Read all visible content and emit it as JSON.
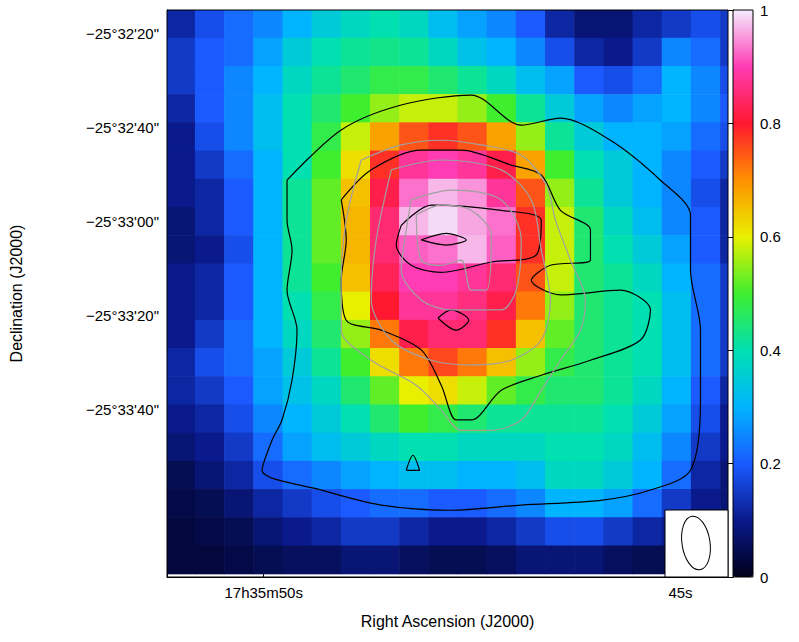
{
  "chart_data": {
    "type": "heatmap",
    "x_label": "Right Ascension (J2000)",
    "y_label": "Declination (J2000)",
    "xlim": [
      51.16,
      44.43
    ],
    "ylim": [
      -2055.7,
      -1935.1
    ],
    "xticks": [
      {
        "value": 50,
        "label": "17h35m50s"
      },
      {
        "value": 45,
        "label": "45s"
      }
    ],
    "yticks": [
      {
        "value": -1940,
        "label": "−25°32'20\""
      },
      {
        "value": -1960,
        "label": "−25°32'40\""
      },
      {
        "value": -1980,
        "label": "−25°33'00\""
      },
      {
        "value": -2000,
        "label": "−25°33'20\""
      },
      {
        "value": -2020,
        "label": "−25°33'40\""
      }
    ],
    "grid": false,
    "x": [
      51.0,
      50.65,
      50.3,
      49.95,
      49.6,
      49.25,
      48.9,
      48.55,
      48.2,
      47.85,
      47.5,
      47.15,
      46.8,
      46.45,
      46.1,
      45.75,
      45.4,
      45.05,
      44.7,
      44.35
    ],
    "y": [
      -1938,
      -1944,
      -1950,
      -1956,
      -1962,
      -1968,
      -1974,
      -1980,
      -1986,
      -1992,
      -1998,
      -2004,
      -2010,
      -2016,
      -2022,
      -2028,
      -2034,
      -2040,
      -2046,
      -2052
    ],
    "cells": [
      [
        0.12,
        0.18,
        0.22,
        0.25,
        0.3,
        0.35,
        0.38,
        0.4,
        0.38,
        0.32,
        0.28,
        0.25,
        0.2,
        0.12,
        0.08,
        0.08,
        0.12,
        0.15,
        0.18,
        0.15
      ],
      [
        0.15,
        0.2,
        0.22,
        0.28,
        0.35,
        0.4,
        0.42,
        0.43,
        0.42,
        0.38,
        0.33,
        0.3,
        0.25,
        0.18,
        0.12,
        0.1,
        0.15,
        0.25,
        0.22,
        0.15
      ],
      [
        0.15,
        0.2,
        0.25,
        0.3,
        0.38,
        0.42,
        0.45,
        0.48,
        0.48,
        0.45,
        0.42,
        0.38,
        0.32,
        0.28,
        0.2,
        0.18,
        0.22,
        0.3,
        0.25,
        0.18
      ],
      [
        0.12,
        0.2,
        0.25,
        0.32,
        0.4,
        0.45,
        0.5,
        0.55,
        0.58,
        0.58,
        0.55,
        0.5,
        0.42,
        0.35,
        0.28,
        0.25,
        0.28,
        0.3,
        0.25,
        0.2
      ],
      [
        0.1,
        0.18,
        0.25,
        0.32,
        0.4,
        0.48,
        0.58,
        0.68,
        0.75,
        0.78,
        0.75,
        0.68,
        0.55,
        0.42,
        0.35,
        0.3,
        0.3,
        0.28,
        0.22,
        0.18
      ],
      [
        0.1,
        0.15,
        0.22,
        0.3,
        0.4,
        0.5,
        0.62,
        0.78,
        0.88,
        0.9,
        0.88,
        0.82,
        0.68,
        0.5,
        0.4,
        0.35,
        0.3,
        0.25,
        0.2,
        0.15
      ],
      [
        0.1,
        0.12,
        0.2,
        0.3,
        0.42,
        0.52,
        0.65,
        0.82,
        0.93,
        0.97,
        0.95,
        0.88,
        0.75,
        0.55,
        0.42,
        0.35,
        0.3,
        0.25,
        0.18,
        0.12
      ],
      [
        0.08,
        0.12,
        0.2,
        0.3,
        0.42,
        0.52,
        0.66,
        0.85,
        0.97,
        0.99,
        0.96,
        0.93,
        0.78,
        0.58,
        0.45,
        0.38,
        0.32,
        0.25,
        0.2,
        0.12
      ],
      [
        0.08,
        0.1,
        0.18,
        0.3,
        0.42,
        0.52,
        0.66,
        0.85,
        0.92,
        0.93,
        0.97,
        0.92,
        0.78,
        0.58,
        0.45,
        0.4,
        0.35,
        0.28,
        0.2,
        0.12
      ],
      [
        0.1,
        0.12,
        0.2,
        0.3,
        0.42,
        0.5,
        0.65,
        0.83,
        0.9,
        0.9,
        0.88,
        0.85,
        0.75,
        0.58,
        0.45,
        0.42,
        0.38,
        0.3,
        0.22,
        0.15
      ],
      [
        0.1,
        0.12,
        0.2,
        0.3,
        0.4,
        0.48,
        0.6,
        0.8,
        0.88,
        0.88,
        0.86,
        0.82,
        0.72,
        0.55,
        0.45,
        0.42,
        0.4,
        0.32,
        0.22,
        0.15
      ],
      [
        0.1,
        0.15,
        0.22,
        0.3,
        0.38,
        0.45,
        0.55,
        0.72,
        0.82,
        0.85,
        0.85,
        0.78,
        0.65,
        0.52,
        0.45,
        0.42,
        0.4,
        0.32,
        0.22,
        0.15
      ],
      [
        0.12,
        0.18,
        0.22,
        0.28,
        0.35,
        0.42,
        0.5,
        0.62,
        0.72,
        0.76,
        0.72,
        0.65,
        0.55,
        0.48,
        0.45,
        0.42,
        0.4,
        0.32,
        0.22,
        0.15
      ],
      [
        0.12,
        0.15,
        0.2,
        0.28,
        0.33,
        0.38,
        0.45,
        0.52,
        0.6,
        0.62,
        0.58,
        0.52,
        0.48,
        0.45,
        0.45,
        0.42,
        0.38,
        0.3,
        0.2,
        0.12
      ],
      [
        0.1,
        0.12,
        0.18,
        0.25,
        0.3,
        0.35,
        0.4,
        0.45,
        0.5,
        0.48,
        0.45,
        0.42,
        0.42,
        0.42,
        0.42,
        0.4,
        0.35,
        0.28,
        0.18,
        0.1
      ],
      [
        0.08,
        0.1,
        0.15,
        0.22,
        0.28,
        0.32,
        0.35,
        0.38,
        0.4,
        0.4,
        0.38,
        0.38,
        0.38,
        0.4,
        0.4,
        0.38,
        0.32,
        0.25,
        0.15,
        0.1
      ],
      [
        0.05,
        0.08,
        0.12,
        0.18,
        0.22,
        0.25,
        0.28,
        0.3,
        0.32,
        0.32,
        0.3,
        0.3,
        0.32,
        0.38,
        0.38,
        0.35,
        0.3,
        0.22,
        0.12,
        0.08
      ],
      [
        0.04,
        0.05,
        0.08,
        0.12,
        0.15,
        0.18,
        0.2,
        0.22,
        0.22,
        0.2,
        0.2,
        0.22,
        0.25,
        0.3,
        0.3,
        0.28,
        0.22,
        0.15,
        0.1,
        0.08
      ],
      [
        0.03,
        0.04,
        0.05,
        0.08,
        0.1,
        0.12,
        0.15,
        0.15,
        0.12,
        0.1,
        0.1,
        0.12,
        0.15,
        0.18,
        0.18,
        0.15,
        0.12,
        0.1,
        0.08,
        0.06
      ],
      [
        0.03,
        0.03,
        0.04,
        0.05,
        0.06,
        0.06,
        0.08,
        0.08,
        0.06,
        0.05,
        0.05,
        0.06,
        0.08,
        0.08,
        0.08,
        0.06,
        0.05,
        0.05,
        0.05,
        0.05
      ]
    ],
    "colorbar": {
      "range": [
        0,
        1
      ],
      "ticks": [
        0,
        0.2,
        0.4,
        0.6,
        0.8,
        1
      ]
    },
    "contours": [
      {
        "color": "#000000",
        "points": [
          [
            49.72,
            -1971.3
          ],
          [
            49.07,
            -1960.6
          ],
          [
            48.35,
            -1955.3
          ],
          [
            47.51,
            -1953.2
          ],
          [
            46.91,
            -1959.6
          ],
          [
            46.44,
            -1958.1
          ],
          [
            45.84,
            -1962.8
          ],
          [
            45.24,
            -1971.3
          ],
          [
            44.88,
            -1978.7
          ],
          [
            44.88,
            -1990.4
          ],
          [
            44.76,
            -2003.2
          ],
          [
            44.76,
            -2018.1
          ],
          [
            44.88,
            -2033.0
          ],
          [
            45.36,
            -2037.2
          ],
          [
            45.96,
            -2039.4
          ],
          [
            46.91,
            -2040.4
          ],
          [
            47.75,
            -2041.5
          ],
          [
            48.59,
            -2040.4
          ],
          [
            49.31,
            -2037.2
          ],
          [
            50.02,
            -2033.0
          ],
          [
            49.9,
            -2026.6
          ],
          [
            49.78,
            -2022.3
          ],
          [
            49.66,
            -2013.8
          ],
          [
            49.6,
            -2003.2
          ],
          [
            49.72,
            -1994.7
          ],
          [
            49.66,
            -1986.2
          ],
          [
            49.72,
            -1979.8
          ],
          [
            49.72,
            -1971.3
          ]
        ]
      },
      {
        "color": "#000000",
        "points": [
          [
            49.07,
            -1975.5
          ],
          [
            48.71,
            -1969.1
          ],
          [
            48.11,
            -1964.9
          ],
          [
            47.63,
            -1964.9
          ],
          [
            47.03,
            -1968.1
          ],
          [
            46.67,
            -1970.2
          ],
          [
            46.44,
            -1977.7
          ],
          [
            46.08,
            -1981.9
          ],
          [
            46.08,
            -1988.3
          ],
          [
            46.56,
            -1989.4
          ],
          [
            46.79,
            -1992.6
          ],
          [
            46.44,
            -1995.7
          ],
          [
            45.72,
            -1994.7
          ],
          [
            45.36,
            -1998.9
          ],
          [
            45.48,
            -2005.3
          ],
          [
            46.08,
            -2009.6
          ],
          [
            46.67,
            -2012.8
          ],
          [
            47.15,
            -2016.0
          ],
          [
            47.51,
            -2022.3
          ],
          [
            47.69,
            -2022.3
          ],
          [
            47.87,
            -2014.9
          ],
          [
            48.11,
            -2007.4
          ],
          [
            48.59,
            -2003.2
          ],
          [
            49.01,
            -2001.1
          ],
          [
            49.07,
            -1992.6
          ],
          [
            49.01,
            -1984.0
          ],
          [
            49.07,
            -1975.5
          ]
        ]
      },
      {
        "color": "#000000",
        "points": [
          [
            48.35,
            -1980.9
          ],
          [
            47.99,
            -1976.6
          ],
          [
            47.15,
            -1977.7
          ],
          [
            46.67,
            -1979.8
          ],
          [
            46.73,
            -1987.2
          ],
          [
            47.27,
            -1988.7
          ],
          [
            47.87,
            -1990.9
          ],
          [
            48.23,
            -1989.4
          ],
          [
            48.41,
            -1985.1
          ],
          [
            48.35,
            -1980.9
          ]
        ]
      },
      {
        "color": "#000000",
        "points": [
          [
            48.11,
            -1984.0
          ],
          [
            47.81,
            -1982.6
          ],
          [
            47.57,
            -1984.0
          ],
          [
            47.81,
            -1985.1
          ],
          [
            48.11,
            -1984.0
          ]
        ]
      },
      {
        "color": "#000000",
        "points": [
          [
            47.91,
            -2000.6
          ],
          [
            47.75,
            -1998.9
          ],
          [
            47.54,
            -2001.1
          ],
          [
            47.69,
            -2003.2
          ],
          [
            47.91,
            -2000.6
          ]
        ]
      },
      {
        "color": "#000000",
        "points": [
          [
            48.29,
            -2033.0
          ],
          [
            48.21,
            -2029.8
          ],
          [
            48.13,
            -2033.0
          ],
          [
            48.29,
            -2033.0
          ]
        ]
      },
      {
        "color": "#a0a0a0",
        "points": [
          [
            48.83,
            -1967.0
          ],
          [
            48.35,
            -1963.8
          ],
          [
            47.87,
            -1962.8
          ],
          [
            47.39,
            -1963.8
          ],
          [
            46.91,
            -1966.0
          ],
          [
            46.61,
            -1972.3
          ],
          [
            46.5,
            -1979.8
          ],
          [
            46.32,
            -1988.3
          ],
          [
            46.14,
            -1996.8
          ],
          [
            46.2,
            -2003.2
          ],
          [
            46.44,
            -2009.6
          ],
          [
            46.67,
            -2016.0
          ],
          [
            46.91,
            -2022.3
          ],
          [
            47.27,
            -2024.5
          ],
          [
            47.63,
            -2024.5
          ],
          [
            47.87,
            -2020.2
          ],
          [
            48.17,
            -2014.9
          ],
          [
            48.71,
            -2009.6
          ],
          [
            49.07,
            -2003.2
          ],
          [
            49.07,
            -1992.6
          ],
          [
            49.01,
            -1979.8
          ],
          [
            48.83,
            -1967.0
          ]
        ]
      },
      {
        "color": "#a0a0a0",
        "points": [
          [
            48.47,
            -1969.1
          ],
          [
            47.87,
            -1967.0
          ],
          [
            47.15,
            -1969.1
          ],
          [
            46.79,
            -1975.5
          ],
          [
            46.67,
            -1986.2
          ],
          [
            46.56,
            -1996.8
          ],
          [
            46.67,
            -2005.3
          ],
          [
            47.03,
            -2009.6
          ],
          [
            47.51,
            -2010.6
          ],
          [
            47.99,
            -2009.6
          ],
          [
            48.47,
            -2005.3
          ],
          [
            48.71,
            -1996.8
          ],
          [
            48.65,
            -1984.0
          ],
          [
            48.47,
            -1969.1
          ]
        ]
      },
      {
        "color": "#a0a0a0",
        "points": [
          [
            48.23,
            -1975.5
          ],
          [
            47.75,
            -1973.4
          ],
          [
            47.15,
            -1975.5
          ],
          [
            46.91,
            -1984.0
          ],
          [
            46.97,
            -1994.7
          ],
          [
            47.15,
            -1998.9
          ],
          [
            47.75,
            -1998.9
          ],
          [
            48.11,
            -1996.8
          ],
          [
            48.35,
            -1990.4
          ],
          [
            48.29,
            -1981.9
          ],
          [
            48.23,
            -1975.5
          ]
        ]
      },
      {
        "color": "#a0a0a0",
        "points": [
          [
            48.17,
            -1978.7
          ],
          [
            47.87,
            -1976.6
          ],
          [
            47.51,
            -1977.7
          ],
          [
            47.27,
            -1983.0
          ],
          [
            47.33,
            -1994.7
          ],
          [
            47.51,
            -1994.7
          ],
          [
            47.63,
            -1988.3
          ],
          [
            47.87,
            -1989.4
          ],
          [
            48.11,
            -1988.3
          ],
          [
            48.17,
            -1978.7
          ]
        ]
      }
    ]
  }
}
